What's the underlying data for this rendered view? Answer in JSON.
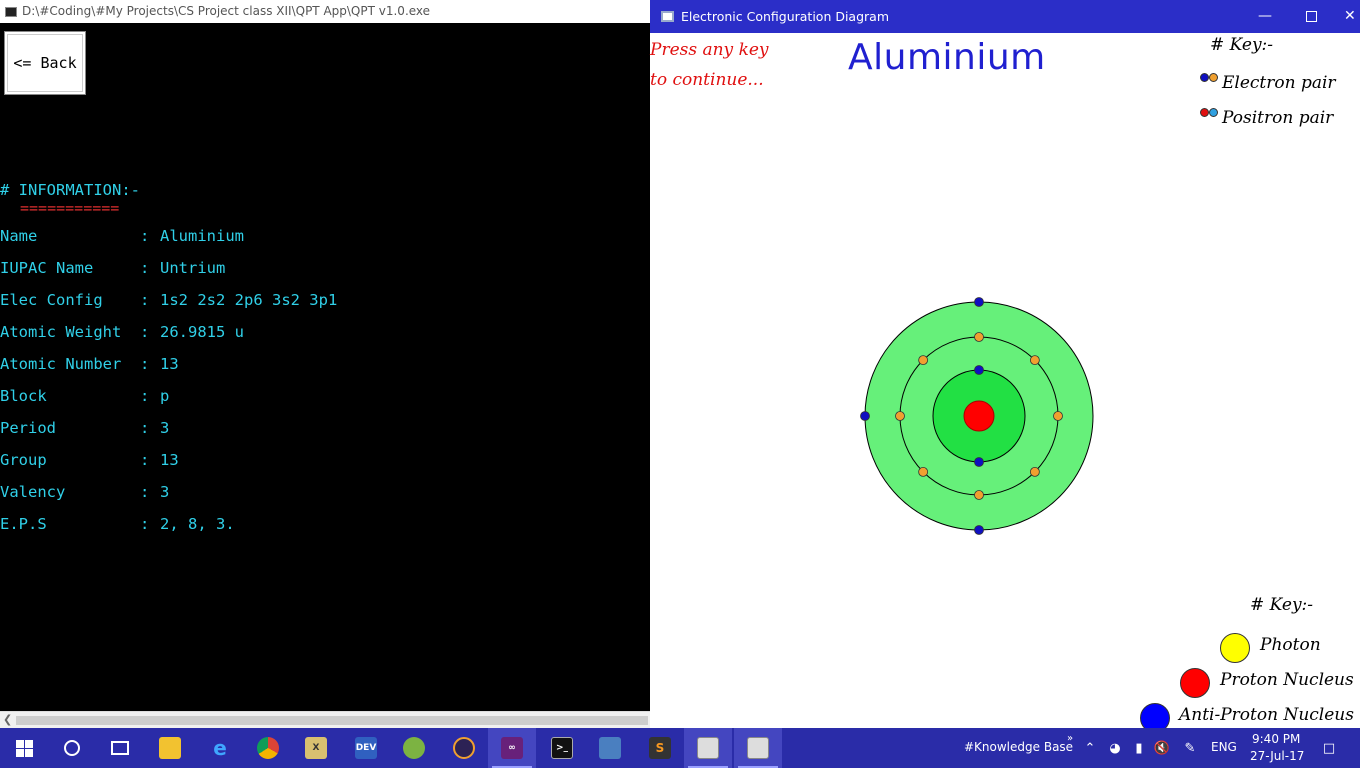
{
  "console": {
    "title": "D:\\#Coding\\#My Projects\\CS Project class XII\\QPT App\\QPT v1.0.exe",
    "back_label": "<= Back",
    "info_heading": "# INFORMATION:-",
    "info_underline": "===========",
    "rows": [
      {
        "key": "Name",
        "value": "Aluminium"
      },
      {
        "key": "IUPAC Name",
        "value": "Untrium"
      },
      {
        "key": "Elec Config",
        "value": "1s2 2s2 2p6 3s2 3p1"
      },
      {
        "key": "Atomic Weight",
        "value": "26.9815 u"
      },
      {
        "key": "Atomic Number",
        "value": "13"
      },
      {
        "key": "Block",
        "value": "p"
      },
      {
        "key": "Period",
        "value": "3"
      },
      {
        "key": "Group",
        "value": "13"
      },
      {
        "key": "Valency",
        "value": "3"
      },
      {
        "key": "E.P.S",
        "value": "2, 8, 3."
      }
    ],
    "separator": ":"
  },
  "graph": {
    "title": "Electronic Configuration Diagram",
    "press_key_line1": "Press any key",
    "press_key_line2": "to continue...",
    "element_name": "Aluminium",
    "key_top": {
      "heading": "# Key:-",
      "electron_pair": "Electron pair",
      "positron_pair": "Positron pair"
    },
    "key_bottom": {
      "heading": "# Key:-",
      "photon": "Photon",
      "proton_nucleus": "Proton Nucleus",
      "anti_proton_nucleus": "Anti-Proton Nucleus"
    },
    "shells": [
      2,
      8,
      3
    ],
    "colors": {
      "electron": "#1010c0",
      "electron_pair_partner": "#f0a030",
      "positron": "#e01010",
      "positron_pair_partner": "#30a0e0",
      "nucleus": "#ff0000",
      "photon": "#ffff00",
      "anti_proton": "#0000ff",
      "shell_inner": "#22e044",
      "shell_outer": "#66f07a"
    }
  },
  "taskbar": {
    "search_tag": "#Knowledge Base",
    "language": "ENG",
    "time": "9:40 PM",
    "date": "27-Jul-17",
    "apps": [
      "start",
      "cortana",
      "task-view",
      "file-explorer",
      "edge",
      "chrome",
      "excel",
      "dev-cpp",
      "android-studio",
      "eclipse",
      "visual-studio",
      "cmd",
      "virtualbox",
      "sublime",
      "qpt-console",
      "qpt-graphics"
    ]
  }
}
